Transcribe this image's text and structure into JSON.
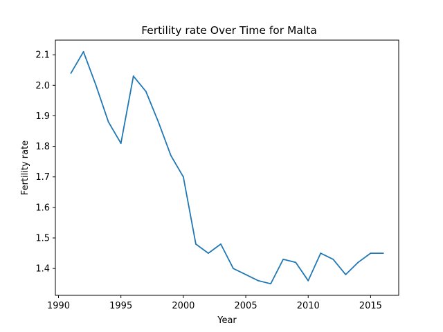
{
  "chart_data": {
    "type": "line",
    "title": "Fertility rate Over Time for Malta",
    "xlabel": "Year",
    "ylabel": "Fertility rate",
    "xlim": [
      1989.75,
      2017.25
    ],
    "ylim": [
      1.312,
      2.148
    ],
    "x_ticks": [
      1990,
      1995,
      2000,
      2005,
      2010,
      2015
    ],
    "y_ticks": [
      1.4,
      1.5,
      1.6,
      1.7,
      1.8,
      1.9,
      2.0,
      2.1
    ],
    "grid": false,
    "series": [
      {
        "color": "#1f77b4",
        "x": [
          1991,
          1992,
          1993,
          1994,
          1995,
          1996,
          1997,
          1998,
          1999,
          2000,
          2001,
          2002,
          2003,
          2004,
          2005,
          2006,
          2007,
          2008,
          2009,
          2010,
          2011,
          2012,
          2013,
          2014,
          2015,
          2016
        ],
        "values": [
          2.04,
          2.11,
          2.0,
          1.88,
          1.81,
          2.03,
          1.98,
          1.88,
          1.77,
          1.7,
          1.48,
          1.45,
          1.48,
          1.4,
          1.38,
          1.36,
          1.35,
          1.43,
          1.42,
          1.36,
          1.45,
          1.43,
          1.38,
          1.42,
          1.45,
          1.45
        ]
      }
    ]
  }
}
